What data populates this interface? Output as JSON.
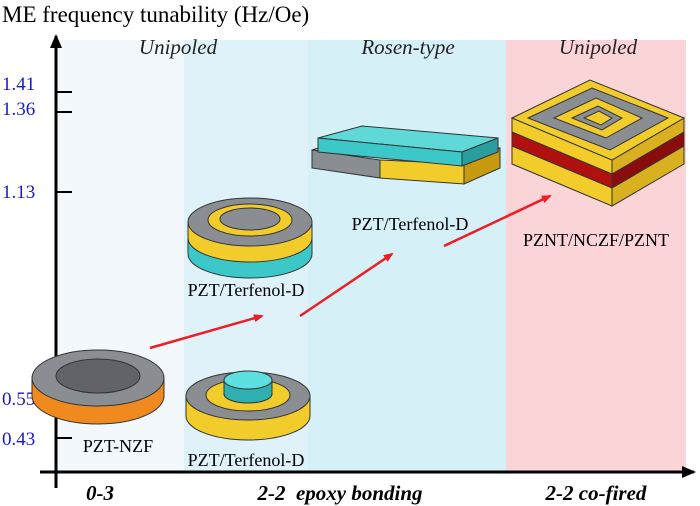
{
  "title": "ME frequency tunability (Hz/Oe)",
  "y_ticks": [
    "1.41",
    "1.36",
    "1.13",
    "0.55",
    "0.43"
  ],
  "bands": [
    {
      "id": "band-03",
      "label": "",
      "fill": "#f2f8fc"
    },
    {
      "id": "band-22a",
      "label": "Unipoled",
      "fill": "#dff2f9"
    },
    {
      "id": "band-22b",
      "label": "Rosen-type",
      "fill": "#d6f0f8"
    },
    {
      "id": "band-cofired",
      "label": "Unipoled",
      "fill": "#fbd4d8"
    }
  ],
  "top_labels": {
    "unipoled_left": "Unipoled",
    "rosen": "Rosen-type",
    "unipoled_right": "Unipoled"
  },
  "x_labels": {
    "left": "0-3",
    "middle": "2-2  epoxy bonding",
    "right": "2-2 co-fired"
  },
  "devices": {
    "pzt_nzf": "PZT-NZF",
    "terfenol_disc_bottom": "PZT/Terfenol-D",
    "terfenol_disc_top": "PZT/Terfenol-D",
    "terfenol_rosen": "PZT/Terfenol-D",
    "pznt": "PZNT/NCZF/PZNT"
  },
  "colors": {
    "axis": "#000000",
    "tick_text": "#1a1acc",
    "arrow": "#ee1c24",
    "gray": "#8a8d91",
    "gray_dark": "#606368",
    "gold": "#f2cc2a",
    "gold_dark": "#c79a10",
    "cyan": "#3cc8c8",
    "orange": "#f08a1e",
    "red_layer": "#b01010"
  }
}
